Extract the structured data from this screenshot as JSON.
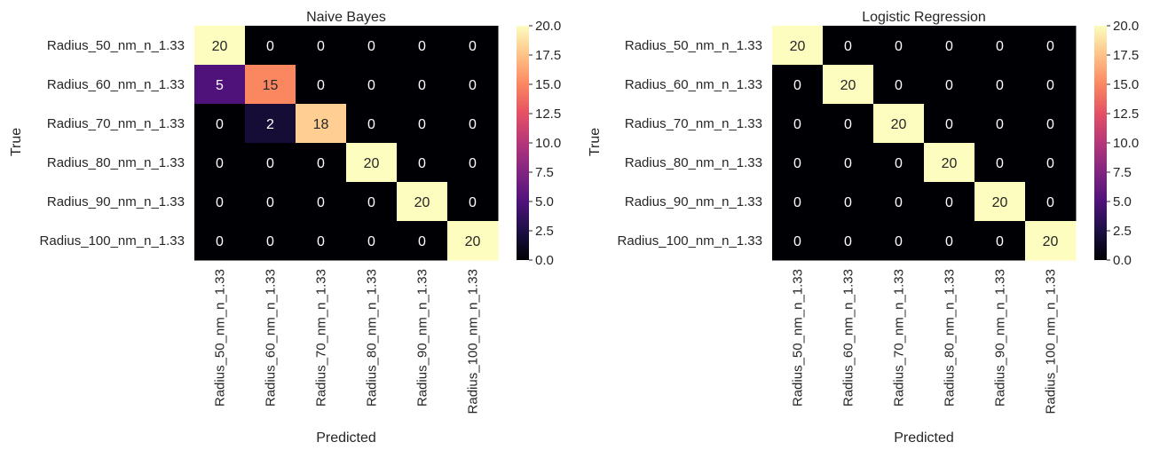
{
  "chart_data": [
    {
      "type": "heatmap",
      "title": "Naive Bayes",
      "xlabel": "Predicted",
      "ylabel": "True",
      "x_categories": [
        "Radius_50_nm_n_1.33",
        "Radius_60_nm_n_1.33",
        "Radius_70_nm_n_1.33",
        "Radius_80_nm_n_1.33",
        "Radius_90_nm_n_1.33",
        "Radius_100_nm_n_1.33"
      ],
      "y_categories": [
        "Radius_50_nm_n_1.33",
        "Radius_60_nm_n_1.33",
        "Radius_70_nm_n_1.33",
        "Radius_80_nm_n_1.33",
        "Radius_90_nm_n_1.33",
        "Radius_100_nm_n_1.33"
      ],
      "values": [
        [
          20,
          0,
          0,
          0,
          0,
          0
        ],
        [
          5,
          15,
          0,
          0,
          0,
          0
        ],
        [
          0,
          2,
          18,
          0,
          0,
          0
        ],
        [
          0,
          0,
          0,
          20,
          0,
          0
        ],
        [
          0,
          0,
          0,
          0,
          20,
          0
        ],
        [
          0,
          0,
          0,
          0,
          0,
          20
        ]
      ],
      "colorbar": {
        "colormap": "magma",
        "range": [
          0,
          20
        ],
        "ticks": [
          "0.0",
          "2.5",
          "5.0",
          "7.5",
          "10.0",
          "12.5",
          "15.0",
          "17.5",
          "20.0"
        ]
      }
    },
    {
      "type": "heatmap",
      "title": "Logistic Regression",
      "xlabel": "Predicted",
      "ylabel": "True",
      "x_categories": [
        "Radius_50_nm_n_1.33",
        "Radius_60_nm_n_1.33",
        "Radius_70_nm_n_1.33",
        "Radius_80_nm_n_1.33",
        "Radius_90_nm_n_1.33",
        "Radius_100_nm_n_1.33"
      ],
      "y_categories": [
        "Radius_50_nm_n_1.33",
        "Radius_60_nm_n_1.33",
        "Radius_70_nm_n_1.33",
        "Radius_80_nm_n_1.33",
        "Radius_90_nm_n_1.33",
        "Radius_100_nm_n_1.33"
      ],
      "values": [
        [
          20,
          0,
          0,
          0,
          0,
          0
        ],
        [
          0,
          20,
          0,
          0,
          0,
          0
        ],
        [
          0,
          0,
          20,
          0,
          0,
          0
        ],
        [
          0,
          0,
          0,
          20,
          0,
          0
        ],
        [
          0,
          0,
          0,
          0,
          20,
          0
        ],
        [
          0,
          0,
          0,
          0,
          0,
          20
        ]
      ],
      "colorbar": {
        "colormap": "magma",
        "range": [
          0,
          20
        ],
        "ticks": [
          "0.0",
          "2.5",
          "5.0",
          "7.5",
          "10.0",
          "12.5",
          "15.0",
          "17.5",
          "20.0"
        ]
      }
    }
  ]
}
